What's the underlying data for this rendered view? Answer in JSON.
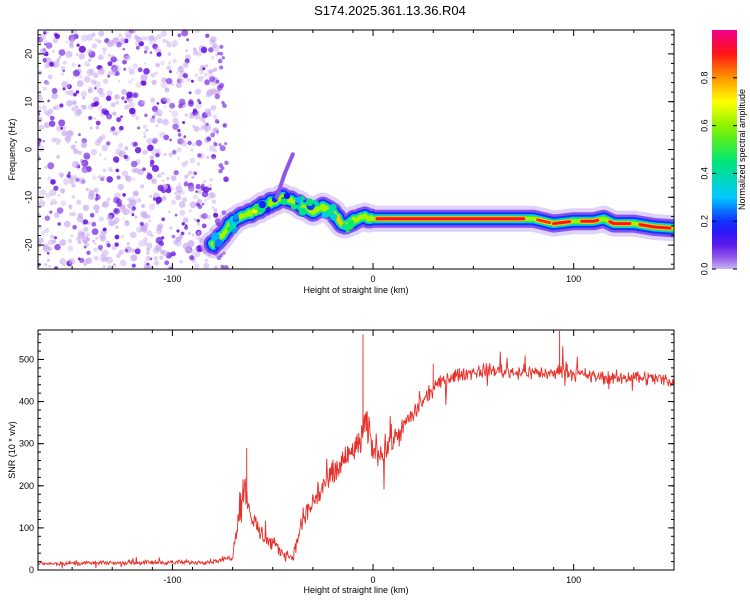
{
  "title": "S174.2025.361.13.36.R04",
  "colors": {
    "snr_line": "#e8302a",
    "axis": "#000000",
    "speckle_dark": "#6a14e0",
    "speckle_light": "#c8a8f0"
  },
  "chart_data": [
    {
      "type": "heatmap",
      "name": "spectrogram",
      "xlabel": "Height of straight line (km)",
      "ylabel": "Frequency (Hz)",
      "xlim": [
        -167,
        150
      ],
      "ylim": [
        -25,
        25
      ],
      "xticks": [
        -100,
        0,
        100
      ],
      "yticks": [
        20,
        10,
        0,
        -10,
        -20
      ],
      "xtick_labels": [
        "-100",
        "0",
        "100"
      ],
      "ytick_labels": [
        "20",
        "10",
        "0",
        "-10",
        "-20"
      ],
      "noise_region_x": [
        -167,
        -77
      ],
      "ridge": {
        "description": "Dominant frequency ridge vs height",
        "x": [
          -80,
          -75,
          -70,
          -65,
          -60,
          -55,
          -50,
          -45,
          -40,
          -35,
          -30,
          -25,
          -20,
          -15,
          -10,
          -5,
          0,
          20,
          40,
          60,
          80,
          85,
          90,
          100,
          110,
          115,
          120,
          130,
          140,
          150
        ],
        "y": [
          -20,
          -18,
          -15,
          -14,
          -13,
          -12,
          -11,
          -10,
          -11,
          -12,
          -13,
          -12,
          -13,
          -16,
          -15,
          -14,
          -14.5,
          -14.5,
          -14.5,
          -14.5,
          -14.5,
          -15,
          -15.5,
          -15,
          -15,
          -14.5,
          -15.5,
          -15.5,
          -16.2,
          -16.5
        ]
      },
      "colorbar": {
        "label": "Normalized spectral amplitude",
        "range": [
          0,
          1
        ],
        "ticks": [
          0.0,
          0.2,
          0.4,
          0.6,
          0.8
        ],
        "tick_labels": [
          "0.0",
          "0.2",
          "0.4",
          "0.6",
          "0.8"
        ]
      }
    },
    {
      "type": "line",
      "name": "snr",
      "xlabel": "Height of straight line (km)",
      "ylabel": "SNR (10 * v/v)",
      "xlim": [
        -167,
        150
      ],
      "ylim": [
        0,
        570
      ],
      "xticks": [
        -100,
        0,
        100
      ],
      "yticks": [
        0,
        100,
        200,
        300,
        400,
        500
      ],
      "xtick_labels": [
        "-100",
        "0",
        "100"
      ],
      "ytick_labels": [
        "0",
        "100",
        "200",
        "300",
        "400",
        "500"
      ],
      "series": [
        {
          "name": "SNR",
          "x": [
            -167,
            -150,
            -130,
            -110,
            -90,
            -80,
            -70,
            -68,
            -66,
            -64,
            -62,
            -60,
            -55,
            -50,
            -45,
            -40,
            -35,
            -30,
            -25,
            -20,
            -15,
            -10,
            -5,
            -3,
            0,
            5,
            10,
            15,
            20,
            25,
            30,
            35,
            40,
            50,
            60,
            70,
            80,
            90,
            95,
            100,
            110,
            120,
            130,
            140,
            150
          ],
          "values": [
            15,
            16,
            17,
            18,
            18,
            20,
            30,
            110,
            160,
            200,
            150,
            120,
            80,
            60,
            40,
            30,
            120,
            160,
            200,
            220,
            260,
            280,
            320,
            340,
            290,
            280,
            310,
            340,
            370,
            400,
            430,
            450,
            460,
            470,
            475,
            470,
            470,
            465,
            480,
            465,
            460,
            455,
            460,
            455,
            450
          ],
          "noise": [
            6,
            7,
            7,
            8,
            8,
            8,
            10,
            60,
            70,
            60,
            50,
            40,
            35,
            30,
            20,
            15,
            50,
            55,
            60,
            60,
            60,
            55,
            60,
            70,
            55,
            50,
            45,
            40,
            35,
            30,
            25,
            25,
            25,
            25,
            25,
            25,
            25,
            25,
            25,
            25,
            25,
            25,
            25,
            25,
            25
          ],
          "spikes": [
            {
              "x": -63,
              "y": 290
            },
            {
              "x": -5,
              "y": 560
            },
            {
              "x": 93,
              "y": 568
            },
            {
              "x": 30,
              "y": 490
            }
          ]
        }
      ]
    }
  ]
}
